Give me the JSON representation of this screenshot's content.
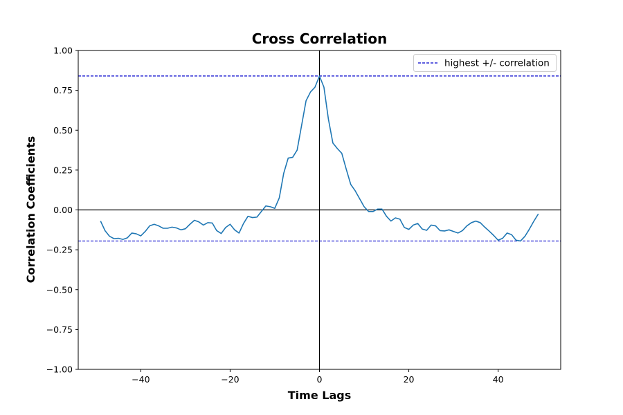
{
  "chart_data": {
    "type": "line",
    "title": "Cross Correlation",
    "xlabel": "Time Lags",
    "ylabel": "Correlation Coefficients",
    "xlim": [
      -54,
      54
    ],
    "ylim": [
      -1.0,
      1.0
    ],
    "xticks": [
      -40,
      -20,
      0,
      20,
      40
    ],
    "xtick_labels": [
      "−40",
      "−20",
      "0",
      "20",
      "40"
    ],
    "yticks": [
      -1.0,
      -0.75,
      -0.5,
      -0.25,
      0.0,
      0.25,
      0.5,
      0.75,
      1.0
    ],
    "ytick_labels": [
      "−1.00",
      "−0.75",
      "−0.50",
      "−0.25",
      "0.00",
      "0.25",
      "0.50",
      "0.75",
      "1.00"
    ],
    "grid": false,
    "legend": {
      "position": "upper-right",
      "entries": [
        "highest +/- correlation"
      ]
    },
    "colors": {
      "series": "#1f77b4",
      "threshold": "#0000cc",
      "zero_lines": "#000000"
    },
    "reference_lines": {
      "horizontal_zero": 0.0,
      "vertical_zero": 0,
      "highest_positive": 0.84,
      "highest_negative": -0.195
    },
    "series": [
      {
        "x": [
          -49,
          -48,
          -47,
          -46,
          -45,
          -44,
          -43,
          -42,
          -41,
          -40,
          -39,
          -38,
          -37,
          -36,
          -35,
          -34,
          -33,
          -32,
          -31,
          -30,
          -29,
          -28,
          -27,
          -26,
          -25,
          -24,
          -23,
          -22,
          -21,
          -20,
          -19,
          -18,
          -17,
          -16,
          -15,
          -14,
          -13,
          -12,
          -11,
          -10,
          -9,
          -8,
          -7,
          -6,
          -5,
          -4,
          -3,
          -2,
          -1,
          0,
          1,
          2,
          3,
          4,
          5,
          6,
          7,
          8,
          9,
          10,
          11,
          12,
          13,
          14,
          15,
          16,
          17,
          18,
          19,
          20,
          21,
          22,
          23,
          24,
          25,
          26,
          27,
          28,
          29,
          30,
          31,
          32,
          33,
          34,
          35,
          36,
          37,
          38,
          39,
          40,
          41,
          42,
          43,
          44,
          45,
          46,
          47,
          48,
          49
        ],
        "values": [
          -0.07,
          -0.13,
          -0.165,
          -0.18,
          -0.178,
          -0.185,
          -0.175,
          -0.145,
          -0.15,
          -0.163,
          -0.135,
          -0.1,
          -0.09,
          -0.1,
          -0.115,
          -0.115,
          -0.108,
          -0.113,
          -0.125,
          -0.118,
          -0.09,
          -0.065,
          -0.075,
          -0.095,
          -0.08,
          -0.082,
          -0.13,
          -0.148,
          -0.11,
          -0.09,
          -0.125,
          -0.145,
          -0.085,
          -0.04,
          -0.048,
          -0.045,
          -0.01,
          0.025,
          0.02,
          0.01,
          0.075,
          0.23,
          0.325,
          0.33,
          0.375,
          0.53,
          0.685,
          0.74,
          0.77,
          0.84,
          0.77,
          0.57,
          0.42,
          0.385,
          0.355,
          0.255,
          0.16,
          0.12,
          0.07,
          0.02,
          -0.01,
          -0.01,
          0.005,
          0.005,
          -0.04,
          -0.07,
          -0.05,
          -0.058,
          -0.11,
          -0.122,
          -0.095,
          -0.085,
          -0.12,
          -0.128,
          -0.095,
          -0.1,
          -0.13,
          -0.132,
          -0.125,
          -0.135,
          -0.145,
          -0.13,
          -0.1,
          -0.08,
          -0.07,
          -0.08,
          -0.108,
          -0.133,
          -0.16,
          -0.19,
          -0.178,
          -0.145,
          -0.155,
          -0.19,
          -0.195,
          -0.165,
          -0.12,
          -0.07,
          -0.025
        ]
      }
    ]
  }
}
